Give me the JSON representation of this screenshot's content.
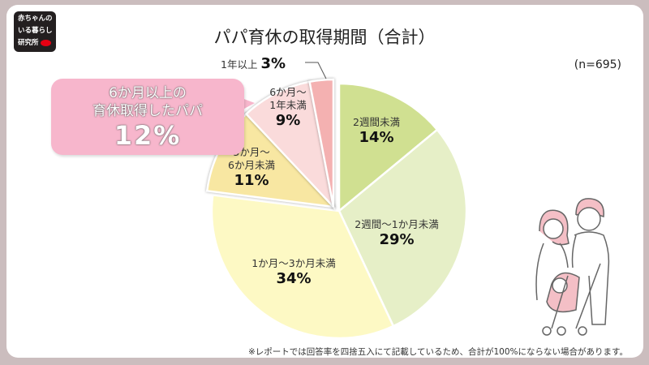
{
  "logo": {
    "lines": [
      "赤ちゃんの",
      "いる暮らし",
      "研究所"
    ]
  },
  "chart_data": {
    "type": "pie",
    "title": "パパ育休の取得期間（合計）",
    "sample": "(n=695)",
    "slices": [
      {
        "label": "2週間未満",
        "value": 14,
        "display": "14%",
        "color": "#d0e091"
      },
      {
        "label": "2週間～1か月未満",
        "value": 29,
        "display": "29%",
        "color": "#e6efc7"
      },
      {
        "label": "1か月～3か月未満",
        "value": 34,
        "display": "34%",
        "color": "#fdf9c4"
      },
      {
        "label": "3か月～6か月未満",
        "value": 11,
        "display": "11%",
        "color": "#f8e7a2",
        "exploded": true
      },
      {
        "label": "6か月～1年未満",
        "value": 9,
        "display": "9%",
        "color": "#fadbdb",
        "exploded": true
      },
      {
        "label": "1年以上",
        "value": 3,
        "display": "3%",
        "color": "#f4b1b1",
        "exploded": true
      }
    ],
    "label_lines": {
      "s1": [
        "2週間未満"
      ],
      "s2": [
        "2週間～1か月未満"
      ],
      "s3": [
        "1か月～3か月未満"
      ],
      "s4": [
        "3か月～",
        "6か月未満"
      ],
      "s5": [
        "6か月～",
        "1年未満"
      ]
    }
  },
  "callout": {
    "line1": "6か月以上の",
    "line2": "育休取得したパパ",
    "value": "12%",
    "color": "#f7b6cc"
  },
  "footnote": "※レポートでは回答率を四捨五入にて記載しているため、合計が100%にならない場合があります。"
}
